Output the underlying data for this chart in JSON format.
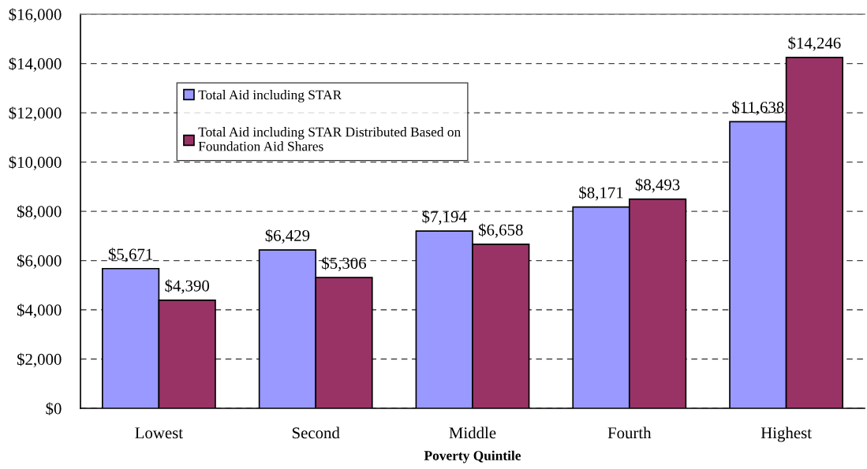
{
  "chart_data": {
    "type": "bar",
    "xlabel": "Poverty Quintile",
    "categories": [
      "Lowest",
      "Second",
      "Middle",
      "Fourth",
      "Highest"
    ],
    "series": [
      {
        "name": "Total Aid including STAR",
        "color": "#9999ff",
        "values": [
          5671,
          6429,
          7194,
          8171,
          11638
        ],
        "value_labels": [
          "$5,671",
          "$6,429",
          "$7,194",
          "$8,171",
          "$11,638"
        ]
      },
      {
        "name": "Total Aid including STAR Distributed Based on Foundation Aid Shares",
        "color": "#993366",
        "values": [
          4390,
          5306,
          6658,
          8493,
          14246
        ],
        "value_labels": [
          "$4,390",
          "$5,306",
          "$6,658",
          "$8,493",
          "$14,246"
        ]
      }
    ],
    "ylim": [
      0,
      16000
    ],
    "yticks": [
      {
        "value": 0,
        "label": "$0"
      },
      {
        "value": 2000,
        "label": "$2,000"
      },
      {
        "value": 4000,
        "label": "$4,000"
      },
      {
        "value": 6000,
        "label": "$6,000"
      },
      {
        "value": 8000,
        "label": "$8,000"
      },
      {
        "value": 10000,
        "label": "$10,000"
      },
      {
        "value": 12000,
        "label": "$12,000"
      },
      {
        "value": 14000,
        "label": "$14,000"
      },
      {
        "value": 16000,
        "label": "$16,000"
      }
    ],
    "grid": "y",
    "legend": "top left"
  }
}
